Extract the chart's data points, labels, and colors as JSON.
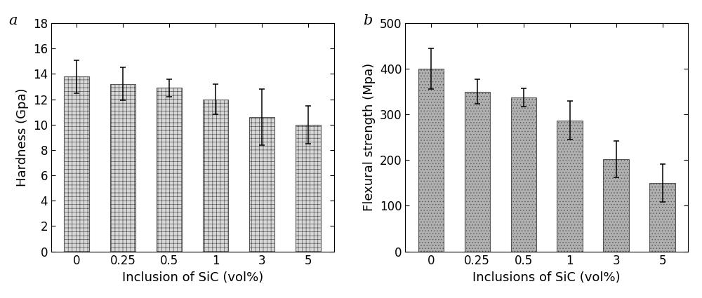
{
  "chart_a": {
    "label": "a",
    "categories": [
      "0",
      "0.25",
      "0.5",
      "1",
      "3",
      "5"
    ],
    "values": [
      13.8,
      13.2,
      12.9,
      12.0,
      10.6,
      10.0
    ],
    "errors": [
      1.3,
      1.3,
      0.7,
      1.2,
      2.2,
      1.5
    ],
    "ylabel": "Hardness (Gpa)",
    "xlabel": "Inclusion of SiC (vol%)",
    "ylim": [
      0,
      18
    ],
    "yticks": [
      0,
      2,
      4,
      6,
      8,
      10,
      12,
      14,
      16,
      18
    ],
    "bar_color": "#d8d8d8",
    "bar_edgecolor": "#555555",
    "hatch": "+++",
    "hatch_linewidth": 0.4
  },
  "chart_b": {
    "label": "b",
    "categories": [
      "0",
      "0.25",
      "0.5",
      "1",
      "3",
      "5"
    ],
    "values": [
      400,
      350,
      338,
      287,
      202,
      150
    ],
    "errors": [
      45,
      27,
      20,
      42,
      40,
      42
    ],
    "ylabel": "Flexural strength (Mpa)",
    "xlabel": "Inclusions of SiC (vol%)",
    "ylim": [
      0,
      500
    ],
    "yticks": [
      0,
      100,
      200,
      300,
      400,
      500
    ],
    "bar_color": "#b0b0b0",
    "bar_edgecolor": "#555555",
    "hatch": "....",
    "hatch_linewidth": 0.4
  },
  "figure_bg": "#ffffff",
  "label_fontsize": 13,
  "tick_fontsize": 12,
  "panel_fontsize": 15,
  "bar_width": 0.55,
  "elinewidth": 1.1,
  "capsize": 3,
  "capthick": 1.1
}
